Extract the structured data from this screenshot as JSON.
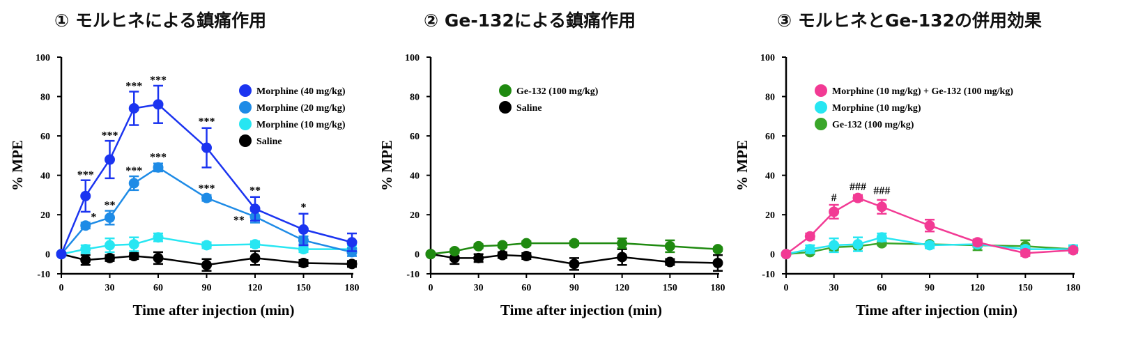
{
  "panels": [
    {
      "title": "① モルヒネによる鎮痛作用"
    },
    {
      "title": "② Ge-132による鎮痛作用"
    },
    {
      "title": "③ モルヒネとGe-132の併用効果"
    }
  ],
  "chart_data": [
    {
      "type": "line",
      "title": "① モルヒネによる鎮痛作用",
      "xlabel": "Time after injection (min)",
      "ylabel": "% MPE",
      "xlim": [
        0,
        180
      ],
      "ylim": [
        -10,
        100
      ],
      "xticks": [
        0,
        30,
        60,
        90,
        120,
        150,
        180
      ],
      "yticks": [
        -10,
        0,
        20,
        40,
        60,
        80,
        100
      ],
      "legend": "top-right",
      "x": [
        0,
        15,
        30,
        45,
        60,
        90,
        120,
        150,
        180
      ],
      "series": [
        {
          "name": "Morphine (40 mg/kg)",
          "color": "#1b34f0",
          "values": [
            0,
            29.5,
            48,
            74,
            76,
            54,
            23,
            12.5,
            6
          ],
          "errors": [
            0,
            8,
            9.5,
            8.5,
            9.5,
            10,
            6,
            8,
            4.5
          ]
        },
        {
          "name": "Morphine (20 mg/kg)",
          "color": "#1e8be6",
          "values": [
            0,
            14.5,
            18.5,
            36,
            44,
            28.5,
            19,
            7,
            1
          ],
          "errors": [
            0,
            1.5,
            3.5,
            3.5,
            2,
            1.5,
            3,
            2,
            2
          ]
        },
        {
          "name": "Morphine (10 mg/kg)",
          "color": "#27e6f2",
          "values": [
            0,
            2.5,
            4.5,
            5,
            8.5,
            4.5,
            5,
            2.5,
            2.5
          ],
          "errors": [
            0,
            2,
            3.5,
            3.5,
            2,
            1.5,
            1.5,
            1.5,
            2
          ]
        },
        {
          "name": "Saline",
          "color": "#000000",
          "values": [
            0,
            -3,
            -2,
            -1,
            -2,
            -5.5,
            -2,
            -4.5,
            -5
          ],
          "errors": [
            0,
            2.5,
            1.5,
            1.5,
            3,
            3,
            3.5,
            1.5,
            1.5
          ]
        }
      ],
      "annotations": [
        {
          "x": 15,
          "y": 38.5,
          "text": "***"
        },
        {
          "x": 30,
          "y": 58.5,
          "text": "***"
        },
        {
          "x": 45,
          "y": 83.5,
          "text": "***"
        },
        {
          "x": 60,
          "y": 86.5,
          "text": "***"
        },
        {
          "x": 90,
          "y": 65.5,
          "text": "***"
        },
        {
          "x": 120,
          "y": 30.5,
          "text": "**"
        },
        {
          "x": 150,
          "y": 22,
          "text": "*"
        },
        {
          "x": 20,
          "y": 17,
          "text": "*"
        },
        {
          "x": 30,
          "y": 23,
          "text": "**"
        },
        {
          "x": 45,
          "y": 40.5,
          "text": "***"
        },
        {
          "x": 60,
          "y": 47.5,
          "text": "***"
        },
        {
          "x": 90,
          "y": 31.5,
          "text": "***"
        },
        {
          "x": 110,
          "y": 15.5,
          "text": "**"
        }
      ]
    },
    {
      "type": "line",
      "title": "② Ge-132による鎮痛作用",
      "xlabel": "Time after injection (min)",
      "ylabel": "% MPE",
      "xlim": [
        0,
        180
      ],
      "ylim": [
        -10,
        100
      ],
      "xticks": [
        0,
        30,
        60,
        90,
        120,
        150,
        180
      ],
      "yticks": [
        -10,
        0,
        20,
        40,
        60,
        80,
        100
      ],
      "legend": "top-center",
      "x": [
        0,
        15,
        30,
        45,
        60,
        90,
        120,
        150,
        180
      ],
      "series": [
        {
          "name": "Ge-132 (100 mg/kg)",
          "color": "#1f8a10",
          "values": [
            0,
            1.5,
            4,
            4.5,
            5.5,
            5.5,
            5.5,
            4,
            2.5
          ],
          "errors": [
            0,
            1,
            1,
            1,
            1,
            1,
            2.5,
            3,
            1
          ]
        },
        {
          "name": "Saline",
          "color": "#000000",
          "values": [
            0,
            -2,
            -2,
            -0.5,
            -1,
            -5,
            -1.5,
            -4,
            -4.5
          ],
          "errors": [
            0,
            3,
            2,
            1.5,
            1.5,
            3,
            4,
            1.5,
            4
          ]
        }
      ],
      "annotations": []
    },
    {
      "type": "line",
      "title": "③ モルヒネとGe-132の併用効果",
      "xlabel": "Time after injection (min)",
      "ylabel": "% MPE",
      "xlim": [
        0,
        180
      ],
      "ylim": [
        -10,
        100
      ],
      "xticks": [
        0,
        30,
        60,
        90,
        120,
        150,
        180
      ],
      "yticks": [
        -10,
        0,
        20,
        40,
        60,
        80,
        100
      ],
      "legend": "top-right",
      "x": [
        0,
        15,
        30,
        45,
        60,
        90,
        120,
        150,
        180
      ],
      "series": [
        {
          "name": "Morphine (10 mg/kg) + Ge-132 (100 mg/kg)",
          "color": "#f23a94",
          "values": [
            0,
            9,
            21.5,
            28.5,
            24,
            14.5,
            6,
            0.5,
            2
          ],
          "errors": [
            0,
            1.5,
            3.5,
            1.5,
            3.5,
            3,
            1.5,
            1.5,
            1
          ]
        },
        {
          "name": "Morphine (10 mg/kg)",
          "color": "#27e6f2",
          "values": [
            0,
            2.5,
            4.5,
            5,
            8.5,
            4.5,
            5,
            2.5,
            2.5
          ],
          "errors": [
            0,
            2,
            3.5,
            3.5,
            2,
            1.5,
            1.5,
            1.5,
            2
          ]
        },
        {
          "name": "Ge-132 (100 mg/kg)",
          "color": "#3aa62a",
          "values": [
            0,
            1,
            3.5,
            4,
            5.5,
            5,
            4.5,
            4,
            2.5
          ],
          "errors": [
            0,
            1,
            1.5,
            1,
            1,
            1,
            2.5,
            3,
            1
          ]
        }
      ],
      "annotations": [
        {
          "x": 30,
          "y": 27,
          "text": "#"
        },
        {
          "x": 45,
          "y": 32.5,
          "text": "###"
        },
        {
          "x": 60,
          "y": 30.5,
          "text": "###"
        }
      ]
    }
  ]
}
